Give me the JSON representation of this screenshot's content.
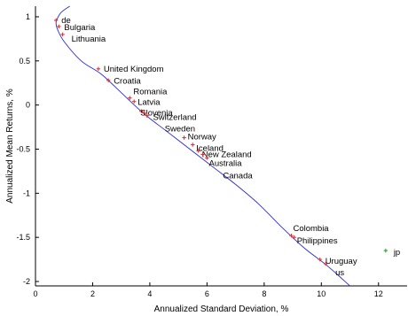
{
  "chart_data": {
    "type": "scatter",
    "xlabel": "Annualized Standard Deviation, %",
    "ylabel": "Annualized Mean Returns, %",
    "xlim": [
      0,
      13
    ],
    "ylim": [
      -2.05,
      1.12
    ],
    "xticks": [
      "0",
      "2",
      "4",
      "6",
      "8",
      "10",
      "12"
    ],
    "yticks": [
      "1",
      "0.5",
      "0",
      "-0.5",
      "-1",
      "-1.5",
      "-2"
    ],
    "grid": false,
    "colors": {
      "efficient_frontier": "#2b2bd6",
      "countries": "#e8322a",
      "outlier": "#2ca02c",
      "axis": "#000000"
    },
    "efficient_frontier": {
      "name": "",
      "x": [
        1.2,
        0.9,
        0.75,
        0.72,
        0.78,
        1.0,
        1.6,
        2.3,
        3.0,
        3.8,
        4.6,
        5.4,
        6.2,
        7.0,
        7.8,
        8.6,
        9.4,
        10.2,
        11.0
      ],
      "y": [
        1.12,
        1.05,
        0.97,
        0.92,
        0.85,
        0.72,
        0.5,
        0.35,
        0.14,
        -0.1,
        -0.3,
        -0.5,
        -0.7,
        -0.9,
        -1.12,
        -1.38,
        -1.62,
        -1.82,
        -2.05
      ]
    },
    "points": [
      {
        "label": "de",
        "x": 0.72,
        "y": 0.96,
        "dx": 6,
        "dy": 0
      },
      {
        "label": "Bulgaria",
        "x": 0.82,
        "y": 0.89,
        "dx": 6,
        "dy": 1
      },
      {
        "label": "Lithuania",
        "x": 0.95,
        "y": 0.8,
        "dx": 10,
        "dy": 5
      },
      {
        "label": "United Kingdom",
        "x": 2.2,
        "y": 0.41,
        "dx": 6,
        "dy": 0
      },
      {
        "label": "Croatia",
        "x": 2.55,
        "y": 0.28,
        "dx": 6,
        "dy": 1
      },
      {
        "label": "Romania",
        "x": 3.3,
        "y": 0.08,
        "dx": 4,
        "dy": -7
      },
      {
        "label": "Latvia",
        "x": 3.45,
        "y": 0.04,
        "dx": 4,
        "dy": 1
      },
      {
        "label": "Slovenia",
        "x": 3.7,
        "y": -0.07,
        "dx": -1,
        "dy": 2
      },
      {
        "label": "Switzerland",
        "x": 3.8,
        "y": -0.09,
        "dx": 10,
        "dy": 5
      },
      {
        "label": "Sweden",
        "x": 3.9,
        "y": -0.12,
        "dx": 20,
        "dy": 15
      },
      {
        "label": "Norway",
        "x": 5.2,
        "y": -0.37,
        "dx": 4,
        "dy": -1
      },
      {
        "label": "Iceland",
        "x": 5.5,
        "y": -0.45,
        "dx": 4,
        "dy": 4
      },
      {
        "label": "New Zealand",
        "x": 5.7,
        "y": -0.52,
        "dx": 4,
        "dy": 4
      },
      {
        "label": "Australia",
        "x": 5.85,
        "y": -0.56,
        "dx": 7,
        "dy": 10
      },
      {
        "label": "Canada",
        "x": 6.0,
        "y": -0.6,
        "dx": 18,
        "dy": 20
      },
      {
        "label": "Colombia",
        "x": 8.95,
        "y": -1.48,
        "dx": 2,
        "dy": -8
      },
      {
        "label": "Philippines",
        "x": 9.05,
        "y": -1.5,
        "dx": 3,
        "dy": 4
      },
      {
        "label": "Uruguay",
        "x": 9.95,
        "y": -1.75,
        "dx": 6,
        "dy": 2
      },
      {
        "label": "us",
        "x": 10.15,
        "y": -1.8,
        "dx": 11,
        "dy": 10
      }
    ],
    "outliers": [
      {
        "label": "jp",
        "x": 12.25,
        "y": -1.65,
        "dx": 9,
        "dy": 2
      }
    ]
  }
}
